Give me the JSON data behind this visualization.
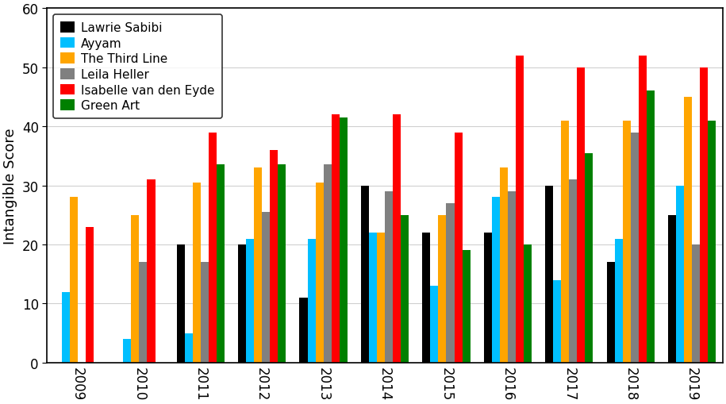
{
  "years": [
    2009,
    2010,
    2011,
    2012,
    2013,
    2014,
    2015,
    2016,
    2017,
    2018,
    2019
  ],
  "series": {
    "Lawrie Sabibi": [
      0,
      0,
      20,
      20,
      11,
      30,
      22,
      22,
      30,
      17,
      25
    ],
    "Ayyam": [
      12,
      4,
      5,
      21,
      21,
      22,
      13,
      28,
      14,
      21,
      30
    ],
    "The Third Line": [
      28,
      25,
      30.5,
      33,
      30.5,
      22,
      25,
      33,
      41,
      41,
      45
    ],
    "Leila Heller": [
      0,
      17,
      17,
      25.5,
      33.5,
      29,
      27,
      29,
      31,
      39,
      20
    ],
    "Isabelle van den Eyde": [
      23,
      31,
      39,
      36,
      42,
      42,
      39,
      52,
      50,
      52,
      50
    ],
    "Green Art": [
      0,
      0,
      33.5,
      33.5,
      41.5,
      25,
      19,
      20,
      35.5,
      46,
      41
    ]
  },
  "colors": {
    "Lawrie Sabibi": "#000000",
    "Ayyam": "#00bfff",
    "The Third Line": "#ffa500",
    "Leila Heller": "#808080",
    "Isabelle van den Eyde": "#ff0000",
    "Green Art": "#008000"
  },
  "ylabel": "Intangible Score",
  "ylim": [
    0,
    60
  ],
  "yticks": [
    0,
    10,
    20,
    30,
    40,
    50,
    60
  ],
  "bar_width": 0.13,
  "figsize": [
    9.15,
    5.1
  ],
  "dpi": 100
}
